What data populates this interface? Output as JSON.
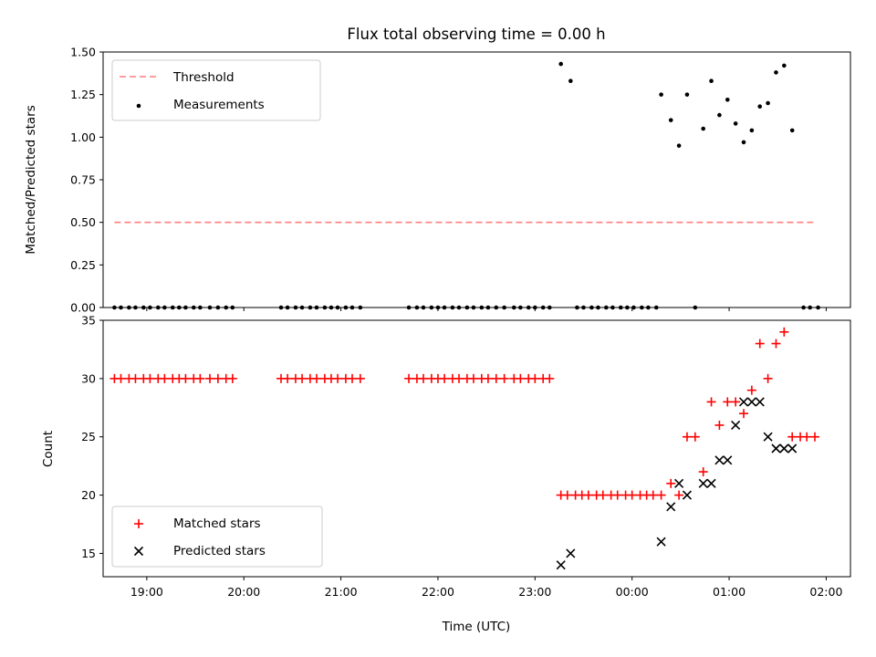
{
  "chart_data": [
    {
      "type": "scatter",
      "title": "Flux total observing time = 0.00 h",
      "ylabel": "Matched/Predicted stars",
      "xlim": [
        "18:33",
        "02:15"
      ],
      "ylim": [
        0,
        1.5
      ],
      "yticks": [
        "0.00",
        "0.25",
        "0.50",
        "0.75",
        "1.00",
        "1.25",
        "1.50"
      ],
      "legend_position": "upper left",
      "threshold": {
        "label": "Threshold",
        "value": 0.5,
        "x_start": "18:40",
        "x_end": "01:52",
        "color": "#ff7f7f"
      },
      "measurements_label": "Measurements",
      "measurements": [
        [
          "18:40",
          0
        ],
        [
          "18:44",
          0
        ],
        [
          "18:49",
          0
        ],
        [
          "18:53",
          0
        ],
        [
          "18:58",
          0
        ],
        [
          "19:02",
          0
        ],
        [
          "19:07",
          0
        ],
        [
          "19:11",
          0
        ],
        [
          "19:16",
          0
        ],
        [
          "19:20",
          0
        ],
        [
          "19:24",
          0
        ],
        [
          "19:29",
          0
        ],
        [
          "19:33",
          0
        ],
        [
          "19:39",
          0
        ],
        [
          "19:44",
          0
        ],
        [
          "19:49",
          0
        ],
        [
          "19:53",
          0
        ],
        [
          "20:23",
          0
        ],
        [
          "20:27",
          0
        ],
        [
          "20:32",
          0
        ],
        [
          "20:36",
          0
        ],
        [
          "20:41",
          0
        ],
        [
          "20:45",
          0
        ],
        [
          "20:50",
          0
        ],
        [
          "20:54",
          0
        ],
        [
          "20:58",
          0
        ],
        [
          "21:03",
          0
        ],
        [
          "21:07",
          0
        ],
        [
          "21:12",
          0
        ],
        [
          "21:42",
          0
        ],
        [
          "21:47",
          0
        ],
        [
          "21:51",
          0
        ],
        [
          "21:56",
          0
        ],
        [
          "22:00",
          0
        ],
        [
          "22:04",
          0
        ],
        [
          "22:09",
          0
        ],
        [
          "22:13",
          0
        ],
        [
          "22:18",
          0
        ],
        [
          "22:22",
          0
        ],
        [
          "22:27",
          0
        ],
        [
          "22:31",
          0
        ],
        [
          "22:36",
          0
        ],
        [
          "22:41",
          0
        ],
        [
          "22:47",
          0
        ],
        [
          "22:51",
          0
        ],
        [
          "22:56",
          0
        ],
        [
          "23:00",
          0
        ],
        [
          "23:05",
          0
        ],
        [
          "23:09",
          0
        ],
        [
          "23:26",
          0
        ],
        [
          "23:30",
          0
        ],
        [
          "23:35",
          0
        ],
        [
          "23:39",
          0
        ],
        [
          "23:44",
          0
        ],
        [
          "23:48",
          0
        ],
        [
          "23:53",
          0
        ],
        [
          "23:57",
          0
        ],
        [
          "00:01",
          0
        ],
        [
          "00:06",
          0
        ],
        [
          "00:10",
          0
        ],
        [
          "00:15",
          0
        ],
        [
          "00:39",
          0
        ],
        [
          "01:46",
          0
        ],
        [
          "01:50",
          0
        ],
        [
          "01:55",
          0
        ],
        [
          "23:16",
          1.43
        ],
        [
          "23:22",
          1.33
        ],
        [
          "00:18",
          1.25
        ],
        [
          "00:24",
          1.1
        ],
        [
          "00:29",
          0.95
        ],
        [
          "00:34",
          1.25
        ],
        [
          "00:44",
          1.05
        ],
        [
          "00:49",
          1.33
        ],
        [
          "00:54",
          1.13
        ],
        [
          "00:59",
          1.22
        ],
        [
          "01:04",
          1.08
        ],
        [
          "01:09",
          0.97
        ],
        [
          "01:14",
          1.04
        ],
        [
          "01:19",
          1.18
        ],
        [
          "01:24",
          1.2
        ],
        [
          "01:29",
          1.38
        ],
        [
          "01:34",
          1.42
        ],
        [
          "01:39",
          1.04
        ]
      ]
    },
    {
      "type": "scatter",
      "xlabel": "Time (UTC)",
      "ylabel": "Count",
      "xlim": [
        "18:33",
        "02:15"
      ],
      "ylim": [
        13,
        35
      ],
      "xticks": [
        "19:00",
        "20:00",
        "21:00",
        "22:00",
        "23:00",
        "00:00",
        "01:00",
        "02:00"
      ],
      "yticks": [
        "15",
        "20",
        "25",
        "30",
        "35"
      ],
      "legend_position": "lower left",
      "series": [
        {
          "name": "Matched stars",
          "marker": "plus",
          "color": "#ff0000",
          "points": [
            [
              "18:40",
              30
            ],
            [
              "18:44",
              30
            ],
            [
              "18:49",
              30
            ],
            [
              "18:53",
              30
            ],
            [
              "18:58",
              30
            ],
            [
              "19:02",
              30
            ],
            [
              "19:07",
              30
            ],
            [
              "19:11",
              30
            ],
            [
              "19:16",
              30
            ],
            [
              "19:20",
              30
            ],
            [
              "19:24",
              30
            ],
            [
              "19:29",
              30
            ],
            [
              "19:33",
              30
            ],
            [
              "19:39",
              30
            ],
            [
              "19:44",
              30
            ],
            [
              "19:49",
              30
            ],
            [
              "19:53",
              30
            ],
            [
              "20:23",
              30
            ],
            [
              "20:27",
              30
            ],
            [
              "20:32",
              30
            ],
            [
              "20:36",
              30
            ],
            [
              "20:41",
              30
            ],
            [
              "20:45",
              30
            ],
            [
              "20:50",
              30
            ],
            [
              "20:54",
              30
            ],
            [
              "20:58",
              30
            ],
            [
              "21:03",
              30
            ],
            [
              "21:07",
              30
            ],
            [
              "21:12",
              30
            ],
            [
              "21:42",
              30
            ],
            [
              "21:47",
              30
            ],
            [
              "21:51",
              30
            ],
            [
              "21:56",
              30
            ],
            [
              "22:00",
              30
            ],
            [
              "22:04",
              30
            ],
            [
              "22:09",
              30
            ],
            [
              "22:13",
              30
            ],
            [
              "22:18",
              30
            ],
            [
              "22:22",
              30
            ],
            [
              "22:27",
              30
            ],
            [
              "22:31",
              30
            ],
            [
              "22:36",
              30
            ],
            [
              "22:41",
              30
            ],
            [
              "22:47",
              30
            ],
            [
              "22:51",
              30
            ],
            [
              "22:56",
              30
            ],
            [
              "23:00",
              30
            ],
            [
              "23:05",
              30
            ],
            [
              "23:09",
              30
            ],
            [
              "23:16",
              20
            ],
            [
              "23:20",
              20
            ],
            [
              "23:25",
              20
            ],
            [
              "23:29",
              20
            ],
            [
              "23:33",
              20
            ],
            [
              "23:38",
              20
            ],
            [
              "23:42",
              20
            ],
            [
              "23:47",
              20
            ],
            [
              "23:51",
              20
            ],
            [
              "23:56",
              20
            ],
            [
              "00:00",
              20
            ],
            [
              "00:05",
              20
            ],
            [
              "00:09",
              20
            ],
            [
              "00:13",
              20
            ],
            [
              "00:18",
              20
            ],
            [
              "00:24",
              21
            ],
            [
              "00:29",
              20
            ],
            [
              "00:34",
              25
            ],
            [
              "00:39",
              25
            ],
            [
              "00:44",
              22
            ],
            [
              "00:49",
              28
            ],
            [
              "00:54",
              26
            ],
            [
              "00:59",
              28
            ],
            [
              "01:04",
              28
            ],
            [
              "01:09",
              27
            ],
            [
              "01:14",
              29
            ],
            [
              "01:19",
              33
            ],
            [
              "01:24",
              30
            ],
            [
              "01:29",
              33
            ],
            [
              "01:34",
              34
            ],
            [
              "01:39",
              25
            ],
            [
              "01:44",
              25
            ],
            [
              "01:48",
              25
            ],
            [
              "01:53",
              25
            ]
          ]
        },
        {
          "name": "Predicted stars",
          "marker": "x",
          "color": "#000000",
          "points": [
            [
              "23:16",
              14
            ],
            [
              "23:22",
              15
            ],
            [
              "00:18",
              16
            ],
            [
              "00:24",
              19
            ],
            [
              "00:29",
              21
            ],
            [
              "00:34",
              20
            ],
            [
              "00:44",
              21
            ],
            [
              "00:49",
              21
            ],
            [
              "00:54",
              23
            ],
            [
              "00:59",
              23
            ],
            [
              "01:04",
              26
            ],
            [
              "01:09",
              28
            ],
            [
              "01:14",
              28
            ],
            [
              "01:19",
              28
            ],
            [
              "01:24",
              25
            ],
            [
              "01:29",
              24
            ],
            [
              "01:34",
              24
            ],
            [
              "01:39",
              24
            ]
          ]
        }
      ]
    }
  ]
}
